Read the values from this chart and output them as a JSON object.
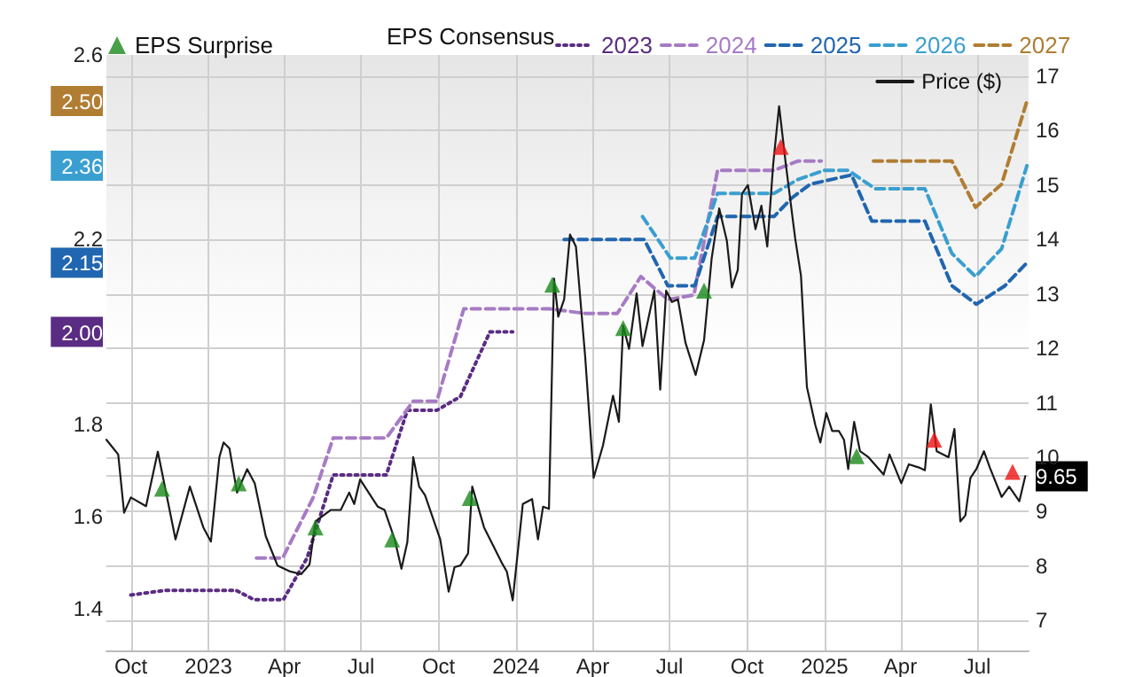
{
  "chart_data": {
    "type": "line",
    "legend": "top",
    "legend_title": "EPS Consensus",
    "grid": true,
    "marker": "none",
    "line_style": "dashed",
    "xlim": [
      "2022-09-02",
      "2025-08-31"
    ],
    "xticks": [
      {
        "value": "2022-10-01",
        "label": "Oct"
      },
      {
        "value": "2023-01-01",
        "label": "2023"
      },
      {
        "value": "2023-04-01",
        "label": "Apr"
      },
      {
        "value": "2023-07-01",
        "label": "Jul"
      },
      {
        "value": "2023-10-01",
        "label": "Oct"
      },
      {
        "value": "2024-01-01",
        "label": "2024"
      },
      {
        "value": "2024-04-01",
        "label": "Apr"
      },
      {
        "value": "2024-07-01",
        "label": "Jul"
      },
      {
        "value": "2024-10-01",
        "label": "Oct"
      },
      {
        "value": "2025-01-01",
        "label": "2025"
      },
      {
        "value": "2025-04-01",
        "label": "Apr"
      },
      {
        "value": "2025-07-01",
        "label": "Jul"
      }
    ],
    "ylim": [
      1.31,
      2.6
    ],
    "yticks": [
      1.4,
      1.6,
      1.8,
      {
        "value": 2.0,
        "label": "2.00"
      },
      {
        "value": 2.15,
        "label": "2.15"
      },
      2.2,
      {
        "value": 2.36,
        "label": "2.36"
      },
      {
        "value": 2.5,
        "label": "2.50"
      },
      2.6
    ],
    "y2lim": [
      6.45,
      17.39
    ],
    "y2ticks": [
      7,
      8,
      9,
      {
        "value": 9.65,
        "label": "9.65"
      },
      10,
      11,
      12,
      13,
      14,
      15,
      16,
      17
    ],
    "series": [
      {
        "name": "2023",
        "color": "#5b2c83",
        "line_style": "dotted",
        "x": [
          "2022-10-01",
          "2022-11-10",
          "2022-12-01",
          "2023-01-20",
          "2023-02-03",
          "2023-02-24",
          "2023-03-31",
          "2023-04-28",
          "2023-05-29",
          "2023-07-31",
          "2023-08-25",
          "2023-09-29",
          "2023-10-27",
          "2023-12-01",
          "2023-12-28"
        ],
        "values": [
          1.43,
          1.44,
          1.44,
          1.44,
          1.44,
          1.42,
          1.42,
          1.51,
          1.69,
          1.69,
          1.83,
          1.83,
          1.86,
          2.0,
          2.0
        ]
      },
      {
        "name": "2024",
        "color": "#a77bc4",
        "x": [
          "2023-02-27",
          "2023-03-30",
          "2023-05-05",
          "2023-05-29",
          "2023-07-31",
          "2023-09-01",
          "2023-09-29",
          "2023-10-31",
          "2023-12-30",
          "2024-02-09",
          "2024-03-23",
          "2024-04-30",
          "2024-05-28",
          "2024-06-29",
          "2024-07-30",
          "2024-08-27",
          "2024-11-02",
          "2024-11-30",
          "2024-12-28"
        ],
        "values": [
          1.51,
          1.51,
          1.64,
          1.77,
          1.77,
          1.85,
          1.85,
          2.05,
          2.05,
          2.05,
          2.04,
          2.04,
          2.12,
          2.07,
          2.08,
          2.35,
          2.35,
          2.37,
          2.37
        ]
      },
      {
        "name": "2025",
        "color": "#2066b0",
        "x": [
          "2024-02-27",
          "2024-06-01",
          "2024-06-29",
          "2024-07-31",
          "2024-08-27",
          "2024-11-02",
          "2024-11-23",
          "2024-12-15",
          "2025-02-02",
          "2025-02-26",
          "2025-04-30",
          "2025-06-01",
          "2025-06-30",
          "2025-08-03",
          "2025-08-29"
        ],
        "values": [
          2.2,
          2.2,
          2.1,
          2.1,
          2.25,
          2.25,
          2.29,
          2.32,
          2.34,
          2.24,
          2.24,
          2.1,
          2.06,
          2.1,
          2.15
        ]
      },
      {
        "name": "2026",
        "color": "#3a9fd0",
        "x": [
          "2024-05-30",
          "2024-07-02",
          "2024-07-31",
          "2024-08-27",
          "2024-11-02",
          "2024-11-30",
          "2025-01-01",
          "2025-01-29",
          "2025-03-02",
          "2025-04-30",
          "2025-06-01",
          "2025-06-29",
          "2025-07-30",
          "2025-08-29"
        ],
        "values": [
          2.25,
          2.16,
          2.16,
          2.3,
          2.3,
          2.33,
          2.35,
          2.35,
          2.31,
          2.31,
          2.17,
          2.12,
          2.18,
          2.36
        ]
      },
      {
        "name": "2027",
        "color": "#b07d33",
        "x": [
          "2025-02-28",
          "2025-06-01",
          "2025-06-29",
          "2025-07-30",
          "2025-08-29"
        ],
        "values": [
          2.37,
          2.37,
          2.27,
          2.32,
          2.5
        ]
      },
      {
        "name": "Price ($)",
        "color": "#1a1a1a",
        "axis": "y2",
        "line_style": "solid",
        "x": [
          "2022-09-02",
          "2022-09-16",
          "2022-09-23",
          "2022-10-01",
          "2022-10-19",
          "2022-11-02",
          "2022-11-23",
          "2022-12-10",
          "2022-12-26",
          "2023-01-04",
          "2023-01-14",
          "2023-01-19",
          "2023-01-26",
          "2023-02-04",
          "2023-02-16",
          "2023-02-25",
          "2023-03-10",
          "2023-03-24",
          "2023-04-08",
          "2023-04-21",
          "2023-05-01",
          "2023-05-08",
          "2023-05-26",
          "2023-06-07",
          "2023-06-17",
          "2023-06-23",
          "2023-06-30",
          "2023-07-21",
          "2023-07-29",
          "2023-08-10",
          "2023-08-18",
          "2023-08-25",
          "2023-09-01",
          "2023-09-08",
          "2023-09-15",
          "2023-10-03",
          "2023-10-13",
          "2023-10-20",
          "2023-10-27",
          "2023-11-05",
          "2023-11-10",
          "2023-11-24",
          "2023-12-15",
          "2023-12-21",
          "2023-12-28",
          "2024-01-09",
          "2024-01-20",
          "2024-01-27",
          "2024-02-02",
          "2024-02-09",
          "2024-02-15",
          "2024-02-20",
          "2024-02-27",
          "2024-03-05",
          "2024-03-12",
          "2024-03-23",
          "2024-04-02",
          "2024-04-13",
          "2024-04-25",
          "2024-05-02",
          "2024-05-07",
          "2024-05-14",
          "2024-05-23",
          "2024-05-30",
          "2024-06-13",
          "2024-06-20",
          "2024-06-27",
          "2024-07-04",
          "2024-07-11",
          "2024-07-20",
          "2024-08-01",
          "2024-08-11",
          "2024-08-20",
          "2024-08-29",
          "2024-09-07",
          "2024-09-13",
          "2024-09-20",
          "2024-09-25",
          "2024-10-02",
          "2024-10-11",
          "2024-10-18",
          "2024-10-25",
          "2024-11-01",
          "2024-11-08",
          "2024-11-16",
          "2024-11-27",
          "2024-12-04",
          "2024-12-11",
          "2024-12-21",
          "2024-12-27",
          "2025-01-03",
          "2025-01-10",
          "2025-01-18",
          "2025-01-24",
          "2025-01-29",
          "2025-02-05",
          "2025-02-12",
          "2025-02-22",
          "2025-03-12",
          "2025-03-19",
          "2025-04-02",
          "2025-04-11",
          "2025-04-23",
          "2025-04-30",
          "2025-05-07",
          "2025-05-14",
          "2025-05-28",
          "2025-06-04",
          "2025-06-11",
          "2025-06-17",
          "2025-06-23",
          "2025-06-30",
          "2025-07-09",
          "2025-07-16",
          "2025-07-30",
          "2025-08-08",
          "2025-08-20",
          "2025-08-27"
        ],
        "values": [
          10.32,
          10.05,
          8.98,
          9.26,
          9.1,
          10.1,
          8.49,
          9.46,
          8.71,
          8.45,
          10.0,
          10.27,
          10.16,
          9.35,
          9.78,
          9.52,
          8.55,
          8.01,
          7.9,
          7.85,
          8.03,
          8.82,
          9.03,
          9.03,
          9.35,
          9.14,
          9.59,
          9.09,
          9.03,
          8.49,
          7.95,
          8.44,
          10.0,
          9.46,
          9.3,
          8.49,
          7.53,
          7.98,
          8.01,
          8.23,
          9.46,
          8.71,
          8.06,
          7.9,
          7.37,
          9.14,
          9.23,
          8.49,
          9.09,
          9.05,
          13.28,
          12.58,
          12.9,
          14.09,
          13.87,
          11.84,
          9.62,
          10.21,
          11.13,
          10.65,
          12.42,
          11.99,
          13.01,
          12.04,
          13.06,
          11.24,
          13.06,
          12.85,
          12.9,
          12.1,
          11.51,
          12.15,
          13.65,
          14.57,
          13.98,
          13.12,
          13.44,
          14.84,
          15.0,
          14.19,
          14.62,
          13.87,
          15.38,
          16.45,
          15.38,
          14.03,
          13.33,
          11.29,
          10.59,
          10.27,
          10.81,
          10.48,
          10.48,
          10.32,
          9.78,
          10.65,
          10.11,
          10.0,
          9.68,
          10.05,
          9.52,
          9.87,
          9.81,
          9.76,
          10.97,
          10.11,
          10.0,
          10.52,
          8.82,
          8.93,
          9.62,
          9.78,
          10.11,
          9.81,
          9.27,
          9.46,
          9.19,
          9.65
        ]
      },
      {
        "name": "EPS Surprise",
        "type": "scatter",
        "marker": "triangle",
        "color": "#1a8a1a",
        "axis": "y2",
        "x": [
          "2022-11-07",
          "2023-02-06",
          "2023-05-08",
          "2023-08-07",
          "2023-11-07",
          "2024-02-13",
          "2024-05-07",
          "2024-08-11",
          "2025-02-08"
        ],
        "values": [
          9.42,
          9.52,
          8.71,
          8.49,
          9.25,
          13.17,
          12.37,
          13.06,
          10.02
        ]
      },
      {
        "type": "scatter",
        "marker": "triangle",
        "color": "#ee1111",
        "axis": "y2",
        "x": [
          "2024-11-10",
          "2025-05-11",
          "2025-08-12"
        ],
        "values": [
          15.7,
          10.32,
          9.73
        ]
      }
    ]
  }
}
